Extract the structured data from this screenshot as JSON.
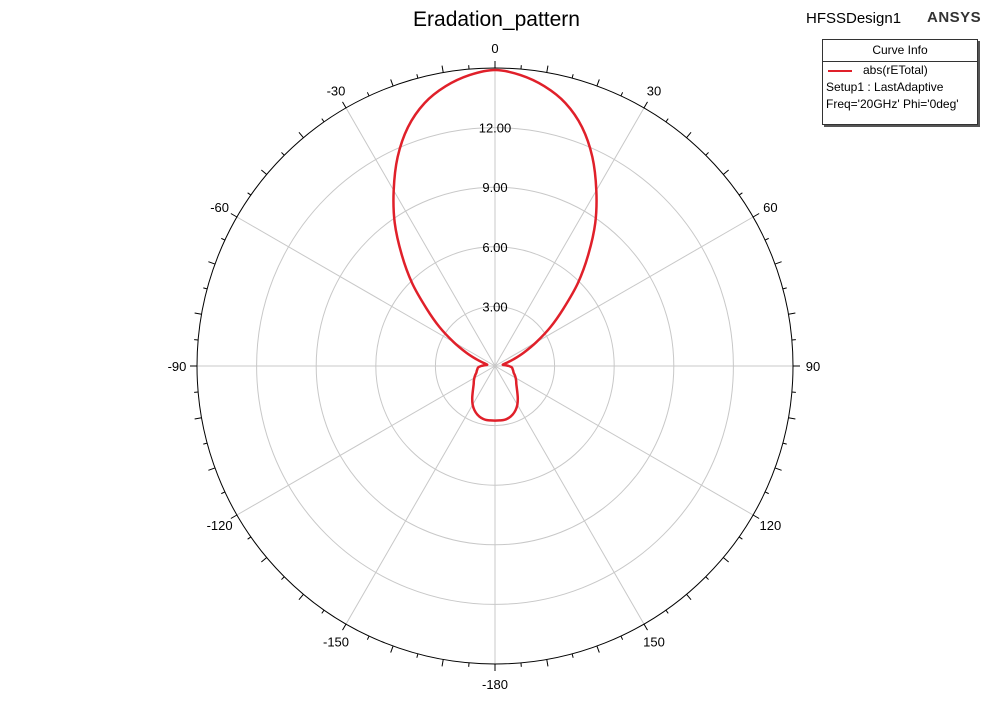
{
  "header": {
    "title": "Eradation_pattern",
    "design_name": "HFSSDesign1",
    "brand": "ANSYS"
  },
  "legend": {
    "title": "Curve Info",
    "curve_name": "abs(rETotal)",
    "setup": "Setup1 : LastAdaptive",
    "conditions": "Freq='20GHz' Phi='0deg'"
  },
  "chart_data": {
    "type": "line",
    "subtype": "polar",
    "title": "Eradation_pattern",
    "angle_unit": "deg",
    "angle_ticks": [
      0,
      30,
      60,
      90,
      120,
      150,
      -180,
      -150,
      -120,
      -90,
      -60,
      -30
    ],
    "angle_tick_labels": [
      "0",
      "30",
      "60",
      "90",
      "120",
      "150",
      "-180",
      "-150",
      "-120",
      "-90",
      "-60",
      "-30"
    ],
    "radial_ticks": [
      3,
      6,
      9,
      12
    ],
    "radial_tick_labels": [
      "3.00",
      "6.00",
      "9.00",
      "12.00"
    ],
    "radial_range": [
      0,
      15
    ],
    "grid": true,
    "legend_position": "top-right",
    "series": [
      {
        "name": "abs(rETotal)",
        "color": "#e0202a",
        "theta": [
          0,
          5,
          10,
          15,
          20,
          25,
          30,
          35,
          40,
          45,
          50,
          55,
          60,
          65,
          70,
          75,
          80,
          85,
          90,
          95,
          100,
          105,
          110,
          115,
          120,
          125,
          130,
          135,
          140,
          145,
          150,
          155,
          160,
          165,
          170,
          175,
          180,
          -175,
          -170,
          -165,
          -160,
          -155,
          -150,
          -145,
          -140,
          -135,
          -130,
          -125,
          -120,
          -115,
          -110,
          -105,
          -100,
          -95,
          -90,
          -85,
          -80,
          -75,
          -70,
          -65,
          -60,
          -55,
          -50,
          -45,
          -40,
          -35,
          -30,
          -25,
          -20,
          -15,
          -10,
          -5
        ],
        "r": [
          14.9,
          14.7,
          14.3,
          13.7,
          12.8,
          11.6,
          10.2,
          8.8,
          7.3,
          5.9,
          4.5,
          3.4,
          2.4,
          1.6,
          1.0,
          0.6,
          0.4,
          0.5,
          0.7,
          0.85,
          0.9,
          0.95,
          1.0,
          1.1,
          1.2,
          1.3,
          1.4,
          1.55,
          1.75,
          2.0,
          2.25,
          2.45,
          2.6,
          2.7,
          2.75,
          2.75,
          2.75,
          2.75,
          2.75,
          2.7,
          2.6,
          2.45,
          2.25,
          2.0,
          1.75,
          1.55,
          1.4,
          1.3,
          1.2,
          1.1,
          1.0,
          0.95,
          0.9,
          0.85,
          0.7,
          0.5,
          0.4,
          0.6,
          1.0,
          1.6,
          2.4,
          3.4,
          4.5,
          5.9,
          7.3,
          8.8,
          10.2,
          11.6,
          12.8,
          13.7,
          14.3,
          14.7
        ]
      }
    ]
  }
}
